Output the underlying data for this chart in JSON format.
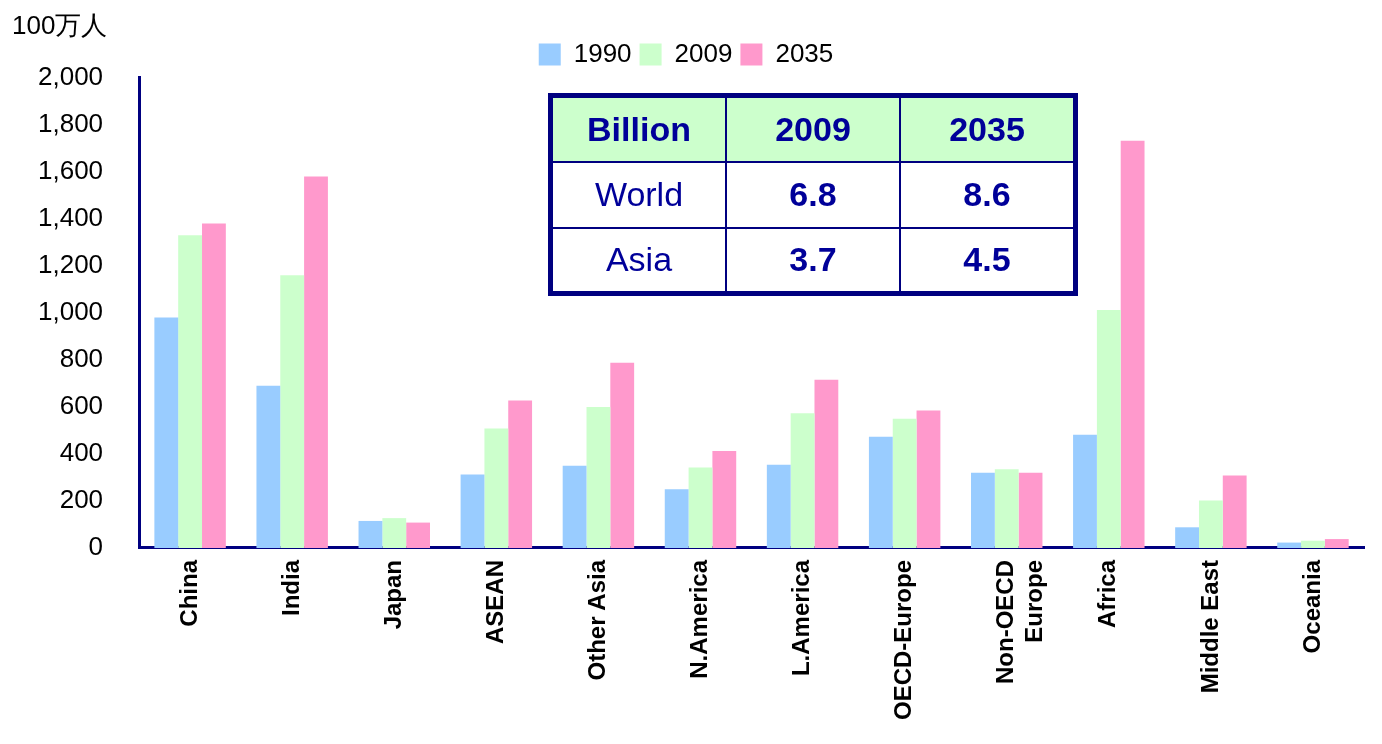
{
  "chart_data": {
    "type": "bar",
    "ylabel": "100万人",
    "categories": [
      "China",
      "India",
      "Japan",
      "ASEAN",
      "Other Asia",
      "N.America",
      "L.America",
      "OECD-Europe",
      "Non-OECD Europe",
      "Africa",
      "Middle East",
      "Oceania"
    ],
    "series": [
      {
        "name": "1990",
        "color": "#99ccff",
        "values": [
          980,
          690,
          115,
          312,
          350,
          250,
          354,
          473,
          320,
          481,
          88,
          23
        ]
      },
      {
        "name": "2009",
        "color": "#ccffcc",
        "values": [
          1330,
          1160,
          127,
          508,
          600,
          342,
          573,
          550,
          335,
          1012,
          202,
          31
        ]
      },
      {
        "name": "2035",
        "color": "#ff99cc",
        "values": [
          1380,
          1580,
          108,
          627,
          788,
          412,
          715,
          585,
          320,
          1731,
          308,
          38
        ]
      }
    ],
    "ylim": [
      0,
      2000
    ],
    "yticks": [
      {
        "value": 0,
        "label": "0"
      },
      {
        "value": 200,
        "label": "200"
      },
      {
        "value": 400,
        "label": "400"
      },
      {
        "value": 600,
        "label": "600"
      },
      {
        "value": 800,
        "label": "800"
      },
      {
        "value": 1000,
        "label": "1,000"
      },
      {
        "value": 1200,
        "label": "1,200"
      },
      {
        "value": 1400,
        "label": "1,400"
      },
      {
        "value": 1600,
        "label": "1,600"
      },
      {
        "value": 1800,
        "label": "1,800"
      },
      {
        "value": 2000,
        "label": "2,000"
      }
    ],
    "grid": false,
    "legend": "top",
    "annotations": [
      "Billion",
      "2009",
      "2035",
      "World",
      "6.8",
      "8.6",
      "Asia",
      "3.7",
      "4.5"
    ]
  }
}
